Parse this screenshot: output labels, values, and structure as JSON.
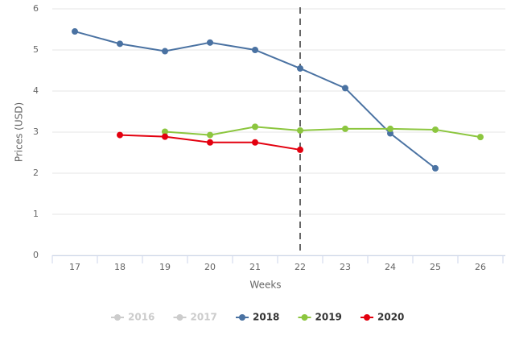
{
  "chart_data": {
    "type": "line",
    "x_label": "Weeks",
    "y_label": "Prices (USD)",
    "categories": [
      "17",
      "18",
      "19",
      "20",
      "21",
      "22",
      "23",
      "24",
      "25",
      "26"
    ],
    "ylim": [
      0,
      6
    ],
    "yticks": [
      0,
      1,
      2,
      3,
      4,
      5,
      6
    ],
    "grid": true,
    "legend": "bottom",
    "vertical_line_at": "22",
    "series": [
      {
        "name": "2016",
        "color": "#cccccc",
        "visible": false,
        "values": [
          null,
          null,
          null,
          null,
          null,
          null,
          null,
          null,
          null,
          null
        ]
      },
      {
        "name": "2017",
        "color": "#cccccc",
        "visible": false,
        "values": [
          null,
          null,
          null,
          null,
          null,
          null,
          null,
          null,
          null,
          null
        ]
      },
      {
        "name": "2018",
        "color": "#4a72a2",
        "visible": true,
        "values": [
          5.45,
          5.15,
          4.97,
          5.18,
          5.0,
          4.55,
          4.07,
          2.97,
          2.12,
          null
        ]
      },
      {
        "name": "2019",
        "color": "#8cc63f",
        "visible": true,
        "values": [
          null,
          null,
          3.01,
          2.93,
          3.13,
          3.04,
          3.08,
          3.08,
          3.06,
          2.88
        ]
      },
      {
        "name": "2020",
        "color": "#e3000f",
        "visible": true,
        "values": [
          null,
          2.93,
          2.89,
          2.75,
          2.75,
          2.57,
          null,
          null,
          null,
          null
        ]
      }
    ]
  }
}
